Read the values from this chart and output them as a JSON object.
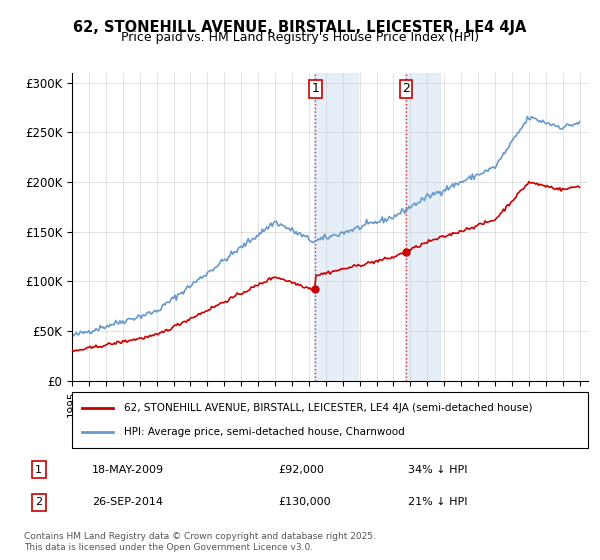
{
  "title": "62, STONEHILL AVENUE, BIRSTALL, LEICESTER, LE4 4JA",
  "subtitle": "Price paid vs. HM Land Registry's House Price Index (HPI)",
  "ylabel_ticks": [
    "£0",
    "£50K",
    "£100K",
    "£150K",
    "£200K",
    "£250K",
    "£300K"
  ],
  "ylim": [
    0,
    310000
  ],
  "xlim_start": 1995.0,
  "xlim_end": 2025.5,
  "transaction1_date": 2009.38,
  "transaction1_label": "1",
  "transaction1_price": 92000,
  "transaction1_text": "18-MAY-2009",
  "transaction1_pct": "34% ↓ HPI",
  "transaction2_date": 2014.74,
  "transaction2_label": "2",
  "transaction2_price": 130000,
  "transaction2_text": "26-SEP-2014",
  "transaction2_pct": "21% ↓ HPI",
  "legend_property": "62, STONEHILL AVENUE, BIRSTALL, LEICESTER, LE4 4JA (semi-detached house)",
  "legend_hpi": "HPI: Average price, semi-detached house, Charnwood",
  "footer": "Contains HM Land Registry data © Crown copyright and database right 2025.\nThis data is licensed under the Open Government Licence v3.0.",
  "property_color": "#cc0000",
  "hpi_color": "#6699cc",
  "background_color": "#f0f4fa",
  "shading_color": "#dce8f5"
}
